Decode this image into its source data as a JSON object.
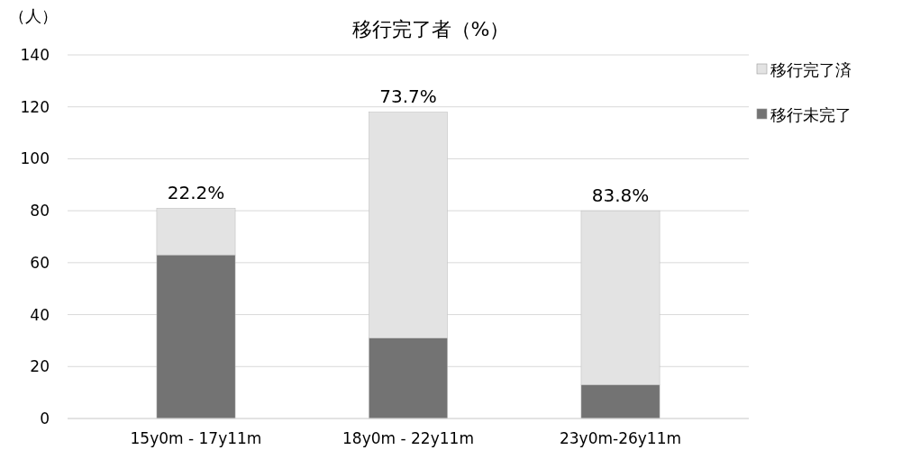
{
  "chart_data": {
    "type": "bar",
    "title": "移行完了者（%）",
    "ylabel": "（人）",
    "categories": [
      "15y0m - 17y11m",
      "18y0m - 22y11m",
      "23y0m-26y11m"
    ],
    "series": [
      {
        "name": "移行未完了",
        "color": "#737373",
        "values": [
          63,
          31,
          13
        ]
      },
      {
        "name": "移行完了済",
        "color": "#e3e3e3",
        "values": [
          18,
          87,
          67
        ]
      }
    ],
    "stacked": true,
    "annotations": [
      {
        "text": "22.2%",
        "x": "15y0m - 17y11m",
        "y": 81
      },
      {
        "text": "73.7%",
        "x": "18y0m - 22y11m",
        "y": 118
      },
      {
        "text": "83.8%",
        "x": "23y0m-26y11m",
        "y": 80
      }
    ],
    "ylim": [
      0,
      140
    ],
    "yticks": [
      0,
      20,
      40,
      60,
      80,
      100,
      120,
      140
    ],
    "grid": "y",
    "legend": "top right"
  }
}
